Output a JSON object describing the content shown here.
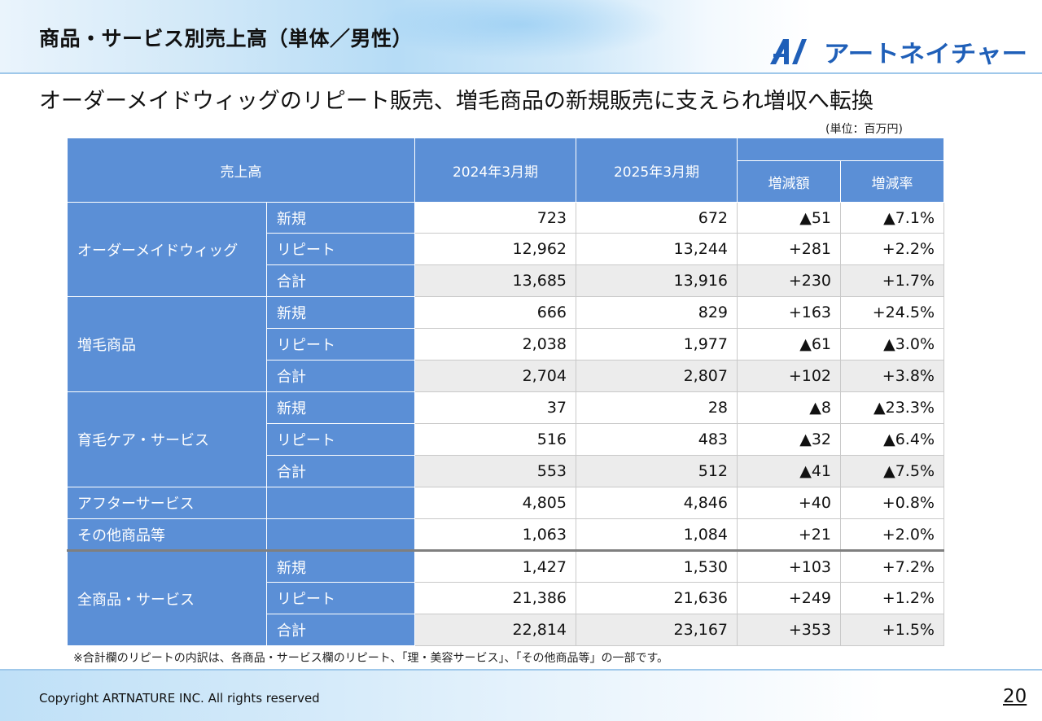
{
  "header": {
    "title": "商品・サービス別売上高（単体／男性）",
    "logo_text": "アートネイチャー"
  },
  "subtitle": "オーダーメイドウィッグのリピート販売、増毛商品の新規販売に支えられ増収へ転換",
  "unit_note": "(単位：百万円)",
  "table": {
    "headers": {
      "sales": "売上高",
      "fy2024": "2024年3月期",
      "fy2025": "2025年3月期",
      "change_amount": "増減額",
      "change_rate": "増減率"
    },
    "groups": [
      {
        "name": "オーダーメイドウィッグ",
        "rows": [
          {
            "label": "新規",
            "fy2024": "723",
            "fy2025": "672",
            "diff": "▲51",
            "rate": "▲7.1%"
          },
          {
            "label": "リピート",
            "fy2024": "12,962",
            "fy2025": "13,244",
            "diff": "+281",
            "rate": "+2.2%"
          },
          {
            "label": "合計",
            "fy2024": "13,685",
            "fy2025": "13,916",
            "diff": "+230",
            "rate": "+1.7%"
          }
        ]
      },
      {
        "name": "増毛商品",
        "rows": [
          {
            "label": "新規",
            "fy2024": "666",
            "fy2025": "829",
            "diff": "+163",
            "rate": "+24.5%"
          },
          {
            "label": "リピート",
            "fy2024": "2,038",
            "fy2025": "1,977",
            "diff": "▲61",
            "rate": "▲3.0%"
          },
          {
            "label": "合計",
            "fy2024": "2,704",
            "fy2025": "2,807",
            "diff": "+102",
            "rate": "+3.8%"
          }
        ]
      },
      {
        "name": "育毛ケア・サービス",
        "rows": [
          {
            "label": "新規",
            "fy2024": "37",
            "fy2025": "28",
            "diff": "▲8",
            "rate": "▲23.3%"
          },
          {
            "label": "リピート",
            "fy2024": "516",
            "fy2025": "483",
            "diff": "▲32",
            "rate": "▲6.4%"
          },
          {
            "label": "合計",
            "fy2024": "553",
            "fy2025": "512",
            "diff": "▲41",
            "rate": "▲7.5%"
          }
        ]
      }
    ],
    "singles": [
      {
        "name": "アフターサービス",
        "fy2024": "4,805",
        "fy2025": "4,846",
        "diff": "+40",
        "rate": "+0.8%"
      },
      {
        "name": "その他商品等",
        "fy2024": "1,063",
        "fy2025": "1,084",
        "diff": "+21",
        "rate": "+2.0%"
      }
    ],
    "total": {
      "name": "全商品・サービス",
      "rows": [
        {
          "label": "新規",
          "fy2024": "1,427",
          "fy2025": "1,530",
          "diff": "+103",
          "rate": "+7.2%"
        },
        {
          "label": "リピート",
          "fy2024": "21,386",
          "fy2025": "21,636",
          "diff": "+249",
          "rate": "+1.2%"
        },
        {
          "label": "合計",
          "fy2024": "22,814",
          "fy2025": "23,167",
          "diff": "+353",
          "rate": "+1.5%"
        }
      ]
    }
  },
  "footnote": "※合計欄のリピートの内訳は、各商品・サービス欄のリピート、「理・美容サービス」、「その他商品等」の一部です。",
  "footer": {
    "copyright": "Copyright ARTNATURE INC. All rights reserved",
    "page_number": "20"
  },
  "colors": {
    "header_blue": "#5b8fd6",
    "row_shade": "#ececec",
    "logo_blue": "#1f5fb8"
  }
}
